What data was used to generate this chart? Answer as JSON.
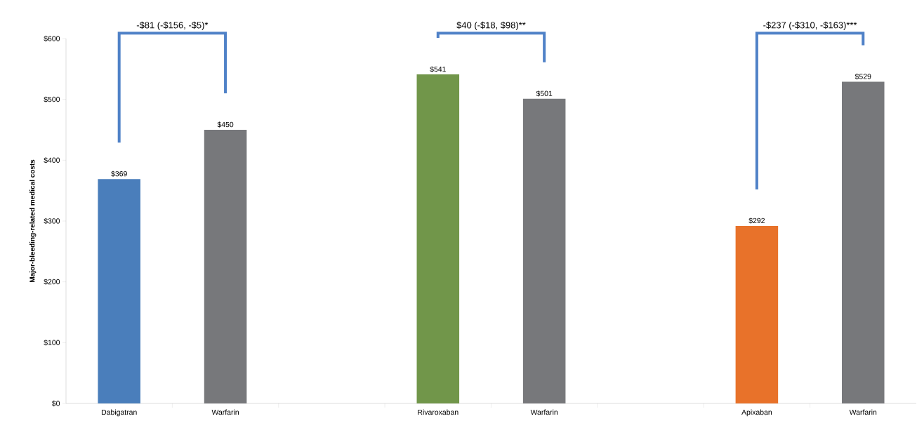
{
  "chart_data": {
    "type": "bar",
    "ylabel": "Major-bleeding-related medical costs",
    "categories": [
      "Dabigatran",
      "Warfarin",
      null,
      "Rivaroxaban",
      "Warfarin",
      null,
      "Apixaban",
      "Warfarin"
    ],
    "values": [
      369,
      450,
      null,
      541,
      501,
      null,
      292,
      529
    ],
    "colors": [
      "#4a7ebb",
      "#77787b",
      "#ffffff",
      "#71964a",
      "#77787b",
      "#ffffff",
      "#e8722a",
      "#77787b"
    ],
    "value_labels": [
      "$369",
      "$450",
      null,
      "$541",
      "$501",
      null,
      "$292",
      "$529"
    ],
    "ylim": [
      0,
      600
    ],
    "yticks": [
      {
        "value": 0,
        "label": "$0"
      },
      {
        "value": 100,
        "label": "$100"
      },
      {
        "value": 200,
        "label": "$200"
      },
      {
        "value": 300,
        "label": "$300"
      },
      {
        "value": 400,
        "label": "$400"
      },
      {
        "value": 500,
        "label": "$500"
      },
      {
        "value": 600,
        "label": "$600"
      }
    ],
    "annotations": [
      "-$81 (-$156, -$5)*",
      "$40 (-$18, $98)**",
      "-$237 (-$310, -$163)***"
    ],
    "grid": false
  }
}
